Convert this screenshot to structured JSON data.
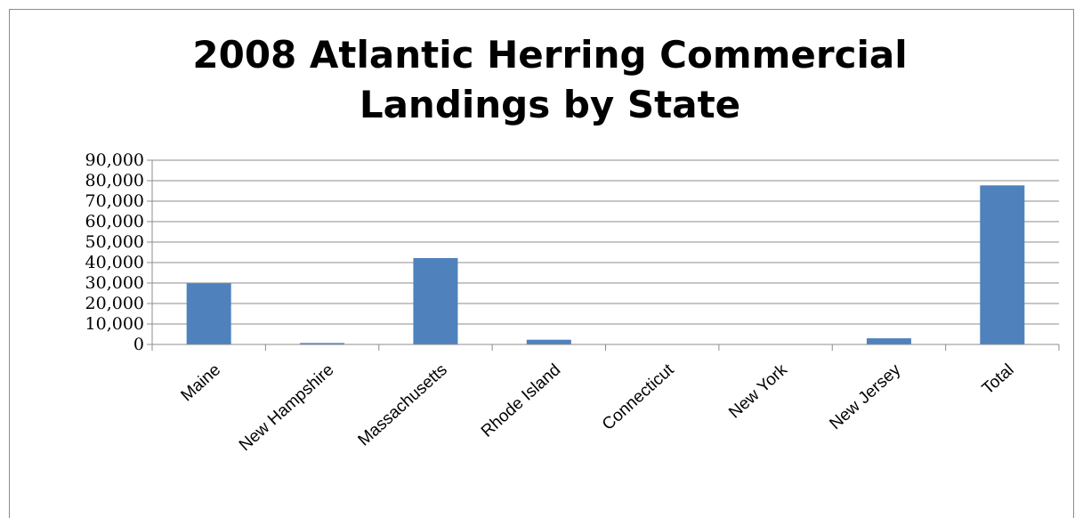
{
  "chart_data": {
    "type": "bar",
    "title_lines": [
      "2008 Atlantic Herring Commercial",
      "Landings by State"
    ],
    "categories": [
      "Maine",
      "New Hampshire",
      "Massachusetts",
      "Rhode Island",
      "Connecticut",
      "New York",
      "New Jersey",
      "Total"
    ],
    "values": [
      29800,
      700,
      42200,
      2300,
      0,
      0,
      3000,
      77700
    ],
    "ylim": [
      0,
      90000
    ],
    "yticks": [
      0,
      10000,
      20000,
      30000,
      40000,
      50000,
      60000,
      70000,
      80000,
      90000
    ],
    "ytick_labels": [
      "0",
      "10,000",
      "20,000",
      "30,000",
      "40,000",
      "50,000",
      "60,000",
      "70,000",
      "80,000",
      "90,000"
    ],
    "grid": true,
    "legend": "none",
    "bar_color": "#4f81bd"
  }
}
